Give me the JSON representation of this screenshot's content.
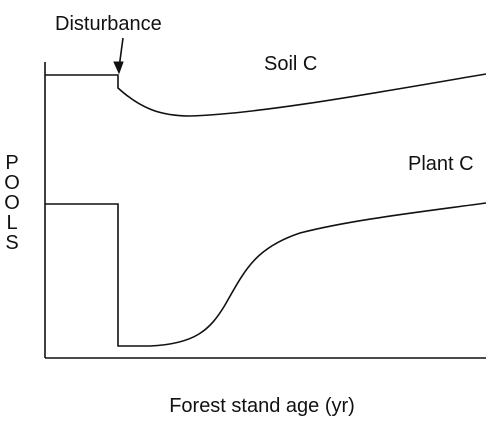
{
  "annotation": "Disturbance",
  "curves": {
    "soil": "Soil C",
    "plant": "Plant C"
  },
  "y_axis_label": "POOLS",
  "x_axis_label": "Forest stand age (yr)"
}
